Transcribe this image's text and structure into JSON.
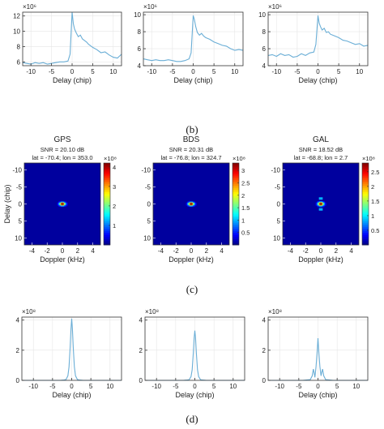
{
  "panel_labels": {
    "b": "(b)",
    "c": "(c)",
    "d": "(d)"
  },
  "colors": {
    "line": "#6aaed6",
    "axis": "#333333",
    "text": "#222222"
  },
  "chart_data": [
    {
      "id": "b1",
      "type": "line",
      "xlabel": "Delay (chip)",
      "ylabel": "",
      "exponent_label": "×10⁶",
      "xlim": [
        -12,
        12
      ],
      "ylim": [
        5.5,
        12.5
      ],
      "xticks": [
        -10,
        -5,
        0,
        5,
        10
      ],
      "yticks": [
        6,
        8,
        10,
        12
      ],
      "x": [
        -12,
        -11,
        -10,
        -9,
        -8,
        -7,
        -6,
        -5,
        -4,
        -3,
        -2,
        -1,
        -0.5,
        0,
        0.3,
        0.6,
        1,
        1.5,
        2,
        2.5,
        3,
        3.5,
        4,
        5,
        6,
        7,
        8,
        9,
        10,
        11,
        12
      ],
      "y": [
        5.9,
        5.8,
        5.7,
        5.9,
        5.8,
        5.9,
        5.7,
        5.8,
        5.9,
        6.0,
        6.0,
        6.1,
        7.0,
        12.5,
        11.0,
        10.3,
        9.8,
        9.3,
        9.5,
        9.0,
        8.8,
        8.6,
        8.3,
        7.9,
        7.6,
        7.2,
        7.3,
        6.9,
        6.6,
        6.5,
        7.0
      ]
    },
    {
      "id": "b2",
      "type": "line",
      "xlabel": "Delay (chip)",
      "ylabel": "",
      "exponent_label": "×10⁶",
      "xlim": [
        -12,
        12
      ],
      "ylim": [
        4,
        10.3
      ],
      "xticks": [
        -10,
        -5,
        0,
        5,
        10
      ],
      "yticks": [
        4,
        6,
        8,
        10
      ],
      "x": [
        -12,
        -11,
        -10,
        -9,
        -8,
        -7,
        -6,
        -5,
        -4,
        -3,
        -2,
        -1,
        -0.5,
        0,
        0.3,
        0.6,
        1,
        1.5,
        2,
        2.5,
        3,
        4,
        5,
        6,
        7,
        8,
        9,
        10,
        11,
        12
      ],
      "y": [
        4.8,
        4.7,
        4.6,
        4.7,
        4.6,
        4.6,
        4.7,
        4.6,
        4.5,
        4.5,
        4.6,
        4.8,
        5.5,
        9.9,
        9.4,
        8.6,
        7.9,
        7.6,
        7.8,
        7.5,
        7.3,
        7.1,
        6.8,
        6.6,
        6.4,
        6.3,
        6.0,
        5.8,
        5.9,
        5.8
      ]
    },
    {
      "id": "b3",
      "type": "line",
      "xlabel": "Delay (chip)",
      "ylabel": "",
      "exponent_label": "×10⁶",
      "xlim": [
        -12,
        12
      ],
      "ylim": [
        4,
        10.3
      ],
      "xticks": [
        -10,
        -5,
        0,
        5,
        10
      ],
      "yticks": [
        4,
        6,
        8,
        10
      ],
      "x": [
        -12,
        -11,
        -10,
        -9,
        -8,
        -7,
        -6,
        -5,
        -4,
        -3,
        -2,
        -1,
        -0.5,
        0,
        0.3,
        0.6,
        1,
        1.5,
        2,
        2.5,
        3,
        4,
        5,
        6,
        7,
        8,
        9,
        10,
        11,
        12
      ],
      "y": [
        5.2,
        5.3,
        5.1,
        5.4,
        5.2,
        5.3,
        5.0,
        5.1,
        5.4,
        5.2,
        5.5,
        5.6,
        6.5,
        9.9,
        9.0,
        8.6,
        8.2,
        8.4,
        7.9,
        8.0,
        7.7,
        7.5,
        7.3,
        7.0,
        6.9,
        6.7,
        6.5,
        6.6,
        6.3,
        6.4
      ]
    },
    {
      "id": "c1",
      "type": "heatmap",
      "title": "GPS",
      "subtitle": "SNR = 20.10 dB",
      "subtitle2": "lat = -70.4; lon = 353.0",
      "xlabel": "Doppler (kHz)",
      "ylabel": "Delay (chip)",
      "xlim": [
        -5,
        5
      ],
      "ylim": [
        -12,
        12
      ],
      "xticks": [
        -4,
        -2,
        0,
        2,
        4
      ],
      "yticks": [
        -10,
        -5,
        0,
        5,
        10
      ],
      "colorbar": {
        "exponent_label": "×10⁸",
        "min": 0,
        "max": 4.2,
        "ticks": [
          1,
          2,
          3,
          4
        ]
      },
      "peak": {
        "x": 0,
        "y": 0,
        "value": 4.2
      },
      "peak_shape": {
        "width_doppler": 0.6,
        "width_delay": 0.9,
        "side_lobes": false
      }
    },
    {
      "id": "c2",
      "type": "heatmap",
      "title": "BDS",
      "subtitle": "SNR = 20.31 dB",
      "subtitle2": "lat = -76.8; lon = 324.7",
      "xlabel": "Doppler (kHz)",
      "ylabel": "",
      "xlim": [
        -5,
        5
      ],
      "ylim": [
        -12,
        12
      ],
      "xticks": [
        -4,
        -2,
        0,
        2,
        4
      ],
      "yticks": [
        -10,
        -5,
        0,
        5,
        10
      ],
      "colorbar": {
        "exponent_label": "×10⁸",
        "min": 0,
        "max": 3.3,
        "ticks": [
          0.5,
          1,
          1.5,
          2,
          2.5,
          3
        ]
      },
      "peak": {
        "x": 0,
        "y": 0,
        "value": 3.3
      },
      "peak_shape": {
        "width_doppler": 0.6,
        "width_delay": 0.9,
        "side_lobes": false
      }
    },
    {
      "id": "c3",
      "type": "heatmap",
      "title": "GAL",
      "subtitle": "SNR = 18.52 dB",
      "subtitle2": "lat = -68.8; lon = 2.7",
      "xlabel": "Doppler (kHz)",
      "ylabel": "",
      "xlim": [
        -5,
        5
      ],
      "ylim": [
        -12,
        12
      ],
      "xticks": [
        -4,
        -2,
        0,
        2,
        4
      ],
      "yticks": [
        -10,
        -5,
        0,
        5,
        10
      ],
      "colorbar": {
        "exponent_label": "×10⁸",
        "min": 0,
        "max": 2.8,
        "ticks": [
          0.5,
          1,
          1.5,
          2,
          2.5
        ]
      },
      "peak": {
        "x": 0,
        "y": 0,
        "value": 2.8
      },
      "peak_shape": {
        "width_doppler": 0.6,
        "width_delay": 1.0,
        "side_lobes": true
      }
    },
    {
      "id": "d1",
      "type": "line",
      "xlabel": "Delay (chip)",
      "ylabel": "",
      "exponent_label": "×10⁸",
      "xlim": [
        -13,
        13
      ],
      "ylim": [
        0,
        4.2
      ],
      "xticks": [
        -10,
        -5,
        0,
        5,
        10
      ],
      "yticks": [
        0,
        2,
        4
      ],
      "x": [
        -13,
        -3,
        -2,
        -1.5,
        -1,
        -0.7,
        -0.4,
        -0.2,
        0,
        0.2,
        0.4,
        0.7,
        1,
        1.5,
        2,
        3,
        13
      ],
      "y": [
        0,
        0,
        0.02,
        0.05,
        0.3,
        0.9,
        2.2,
        3.4,
        4.1,
        3.4,
        2.2,
        0.9,
        0.3,
        0.05,
        0.02,
        0,
        0
      ]
    },
    {
      "id": "d2",
      "type": "line",
      "xlabel": "Delay (chip)",
      "ylabel": "",
      "exponent_label": "×10⁸",
      "xlim": [
        -13,
        13
      ],
      "ylim": [
        0,
        4.2
      ],
      "xticks": [
        -10,
        -5,
        0,
        5,
        10
      ],
      "yticks": [
        0,
        2,
        4
      ],
      "x": [
        -13,
        -3,
        -2,
        -1.5,
        -1,
        -0.7,
        -0.4,
        -0.2,
        0,
        0.2,
        0.4,
        0.7,
        1,
        1.5,
        2,
        3,
        13
      ],
      "y": [
        0,
        0,
        0.02,
        0.04,
        0.25,
        0.7,
        1.8,
        2.8,
        3.3,
        2.8,
        1.8,
        0.7,
        0.25,
        0.04,
        0.02,
        0,
        0
      ]
    },
    {
      "id": "d3",
      "type": "line",
      "xlabel": "Delay (chip)",
      "ylabel": "",
      "exponent_label": "×10⁸",
      "xlim": [
        -13,
        13
      ],
      "ylim": [
        0,
        4.2
      ],
      "xticks": [
        -10,
        -5,
        0,
        5,
        10
      ],
      "yticks": [
        0,
        2,
        4
      ],
      "x": [
        -13,
        -4,
        -3,
        -2,
        -1.5,
        -1.2,
        -1,
        -0.8,
        -0.5,
        -0.2,
        0,
        0.2,
        0.5,
        0.8,
        1,
        1.2,
        1.5,
        2,
        3,
        4,
        13
      ],
      "y": [
        0,
        0,
        0.02,
        0.05,
        0.3,
        0.75,
        0.5,
        0.2,
        0.9,
        2.0,
        2.8,
        2.0,
        0.9,
        0.3,
        0.55,
        0.75,
        0.3,
        0.05,
        0.02,
        0,
        0
      ]
    }
  ]
}
